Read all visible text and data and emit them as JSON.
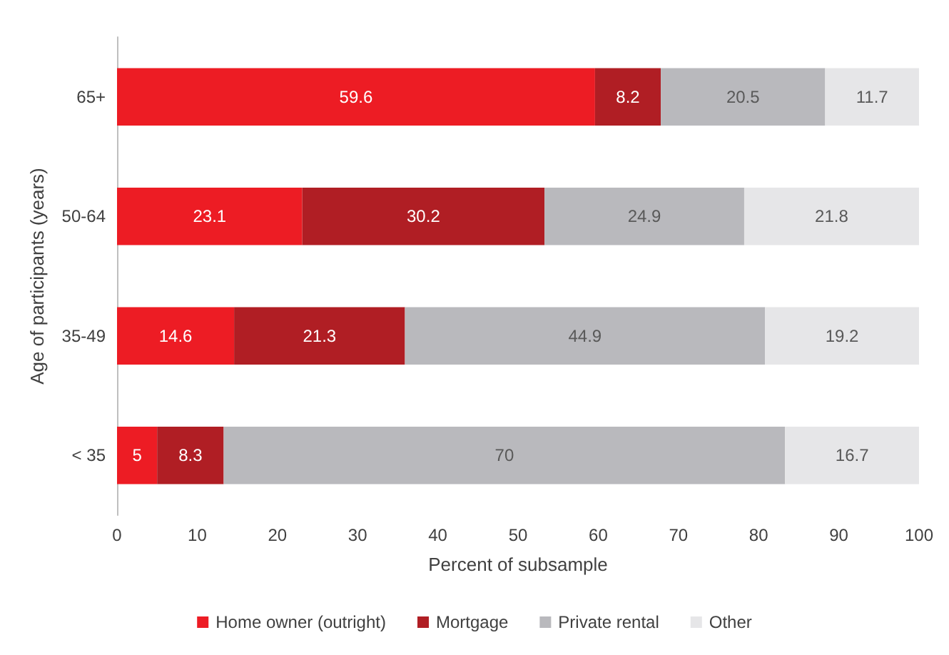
{
  "chart_data": {
    "type": "bar",
    "orientation": "horizontal",
    "stacked": true,
    "data_labels": true,
    "xlabel": "Percent of subsample",
    "ylabel": "Age of participants (years)",
    "categories": [
      "65+",
      "50-64",
      "35-49",
      "< 35"
    ],
    "series": [
      {
        "name": "Home owner (outright)",
        "color": "#ed1c24",
        "values": [
          59.6,
          23.1,
          14.6,
          5
        ]
      },
      {
        "name": "Mortgage",
        "color": "#b01e24",
        "values": [
          8.2,
          30.2,
          21.3,
          8.3
        ]
      },
      {
        "name": "Private rental",
        "color": "#b9b9bd",
        "values": [
          20.5,
          24.9,
          44.9,
          70
        ]
      },
      {
        "name": "Other",
        "color": "#e6e6e8",
        "values": [
          11.7,
          21.8,
          19.2,
          16.7
        ]
      }
    ],
    "xlim": [
      0,
      100
    ],
    "xticks": [
      0,
      10,
      20,
      30,
      40,
      50,
      60,
      70,
      80,
      90,
      100
    ],
    "grid": false,
    "legend": "bottom"
  }
}
